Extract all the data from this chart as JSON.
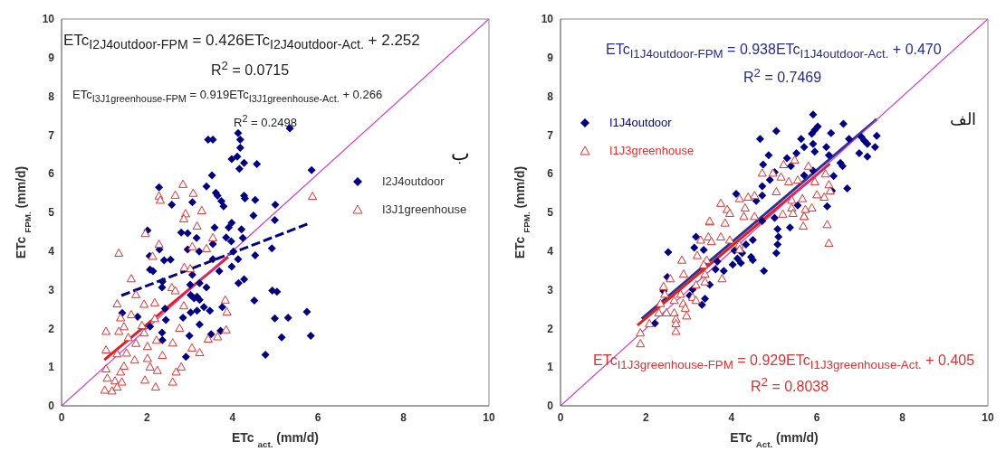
{
  "chart_data": [
    {
      "type": "scatter",
      "xlabel": "ETc $_{act.}$ (mm/d)",
      "ylabel": "ETc $_{FPM.}$ (mm/d)",
      "xlim": [
        0,
        10
      ],
      "xticks": [
        0,
        2,
        4,
        6,
        8,
        10
      ],
      "ylim": [
        0,
        10
      ],
      "yticks": [
        0,
        1,
        2,
        3,
        4,
        5,
        6,
        7,
        8,
        9,
        10
      ],
      "grid": false,
      "legend": "right",
      "annotations": [
        "ETc$_{I2J4outdoor-FPM}$ = 0.426ETc$_{I2J4outdoor-Act.}$ + 2.252",
        "R$^{2}$ = 0.0715",
        "ETc$_{I3J1greenhouse-FPM}$ = 0.919ETc$_{I3J1greenhouse-Act.}$ + 0.266",
        "R$^{2}$ = 0.2498",
        "ب"
      ],
      "series": [
        {
          "name": "I2J4outdoor",
          "marker": "diamond",
          "color": "#000080",
          "x": [
            2.28,
            5.34,
            3.43,
            3.54,
            4.13,
            4.18,
            4.18,
            3.98,
            4.11,
            4.27,
            4.16,
            4.57,
            5.85,
            3.52,
            3.39,
            3.61,
            3.65,
            3.74,
            3.79,
            3.06,
            2.58,
            4.27,
            4.29,
            4.53,
            5.0,
            4.49,
            4.99,
            2.01,
            2.8,
            2.95,
            3.58,
            3.98,
            3.91,
            4.21,
            3.16,
            3.85,
            3.97,
            4.24,
            3.54,
            2.29,
            2.95,
            3.22,
            4.92,
            2.06,
            4.02,
            4.13,
            4.53,
            2.4,
            2.55,
            3.54,
            3.98,
            2.07,
            2.14,
            3.69,
            2.36,
            4.14,
            4.27,
            3.06,
            3.23,
            2.35,
            3.39,
            3.01,
            3.02,
            3.17,
            3.23,
            3.1,
            4.93,
            5.04,
            4.51,
            1.42,
            2.42,
            3.02,
            3.17,
            3.33,
            3.47,
            3.76,
            1.78,
            2.84,
            4.99,
            5.3,
            5.74,
            2.44,
            3.23,
            2.35,
            2.99,
            3.5,
            3.72,
            5.15,
            5.83,
            2.36,
            2.91,
            4.77,
            2.07
          ],
          "values": [
            5.65,
            7.17,
            6.88,
            6.88,
            7.05,
            6.88,
            6.67,
            6.38,
            6.44,
            6.28,
            6.13,
            6.25,
            6.09,
            5.96,
            5.67,
            5.51,
            5.43,
            5.29,
            5.16,
            5.26,
            5.2,
            5.43,
            5.36,
            5.32,
            5.2,
            4.92,
            4.8,
            4.53,
            4.48,
            4.46,
            4.61,
            4.73,
            4.61,
            4.56,
            4.34,
            4.35,
            4.25,
            4.34,
            4.18,
            4.04,
            4.04,
            3.99,
            4.07,
            3.87,
            3.99,
            3.79,
            3.89,
            3.76,
            3.78,
            3.79,
            3.6,
            3.52,
            3.48,
            3.48,
            3.21,
            3.17,
            3.27,
            3.39,
            3.17,
            3.06,
            3.06,
            3.13,
            2.86,
            2.82,
            2.74,
            2.78,
            2.98,
            2.95,
            2.72,
            2.4,
            2.51,
            2.41,
            2.46,
            2.55,
            2.46,
            2.55,
            2.3,
            2.28,
            2.26,
            2.28,
            2.43,
            2.22,
            2.1,
            1.89,
            1.81,
            1.85,
            1.94,
            1.77,
            1.81,
            1.7,
            1.27,
            1.32,
            2.05
          ]
        },
        {
          "name": "I3J1greenhouse",
          "marker": "triangle",
          "color": "#e03030",
          "x": [
            2.28,
            2.31,
            2.84,
            2.66,
            3.08,
            3.28,
            2.9,
            5.87,
            2.86,
            3.17,
            3.54,
            1.96,
            2.13,
            2.28,
            1.34,
            1.63,
            3.39,
            3.06,
            2.87,
            3.01,
            1.74,
            1.3,
            1.93,
            2.18,
            2.58,
            2.66,
            2.86,
            3.83,
            3.87,
            1.63,
            1.38,
            2.18,
            1.46,
            1.88,
            1.04,
            1.34,
            1.93,
            2.22,
            1.74,
            1.56,
            2.76,
            3.85,
            3.43,
            3.65,
            2.01,
            1.04,
            1.3,
            1.52,
            1.71,
            2.36,
            2.6,
            3.05,
            3.23,
            2.01,
            2.07,
            2.24,
            2.68,
            2.8,
            1.04,
            1.46,
            1.38,
            1.07,
            1.25,
            1.41,
            1.95,
            2.6,
            1.01,
            1.18,
            1.3,
            2.2
          ],
          "values": [
            5.43,
            5.32,
            5.73,
            5.45,
            5.5,
            5.05,
            4.97,
            5.42,
            4.84,
            4.65,
            4.35,
            4.46,
            3.87,
            4.18,
            3.95,
            3.29,
            4.07,
            4.12,
            3.58,
            3.55,
            2.88,
            2.64,
            2.63,
            2.67,
            3.06,
            2.98,
            2.59,
            2.74,
            2.43,
            2.36,
            2.28,
            2.26,
            2.05,
            2.08,
            1.93,
            1.93,
            1.89,
            1.7,
            1.62,
            1.77,
            2.01,
            1.97,
            1.73,
            1.79,
            1.54,
            1.45,
            1.35,
            1.37,
            1.19,
            1.31,
            1.63,
            1.5,
            1.38,
            1.23,
            1.01,
            0.92,
            0.88,
            1.01,
            0.96,
            1.03,
            0.88,
            0.72,
            0.65,
            0.62,
            0.67,
            0.62,
            0.41,
            0.39,
            0.49,
            0.49
          ]
        },
        {
          "type": "line",
          "color": "#000080",
          "line_style": "dashed",
          "x": [
            1.4,
            5.8
          ],
          "values": [
            2.85,
            4.72
          ]
        },
        {
          "type": "line",
          "color": "#e02020",
          "line_style": "solid",
          "x": [
            1.0,
            3.9
          ],
          "values": [
            1.19,
            3.85
          ]
        },
        {
          "type": "line",
          "color": "#cc33cc",
          "line_style": "solid",
          "x": [
            0,
            10
          ],
          "values": [
            0,
            10
          ]
        }
      ]
    },
    {
      "type": "scatter",
      "xlabel": "ETc $_{Act.}$ (mm/d)",
      "ylabel": "ETc $_{FPM.}$ (mm/d)",
      "xlim": [
        0,
        10
      ],
      "xticks": [
        0,
        2,
        4,
        6,
        8,
        10
      ],
      "ylim": [
        0,
        10
      ],
      "yticks": [
        0,
        1,
        2,
        3,
        4,
        5,
        6,
        7,
        8,
        9,
        10
      ],
      "grid": false,
      "legend": "top left",
      "annotations": [
        "ETc$_{I1J4outdoor-FPM}$ = 0.938ETc$_{I1J4outdoor-Act.}$ + 0.470",
        "R$^{2}$ = 0.7469",
        "الف",
        "ETc$_{I1J3greenhouse-FPM}$ = 0.929ETc$_{I1J3greenhouse-Act.}$ + 0.405",
        "R$^{2}$ = 0.8038"
      ],
      "series": [
        {
          "name": "I1J4outdoor",
          "marker": "diamond",
          "color": "#000080",
          "x": [
            4.67,
            5.05,
            5.91,
            6.62,
            6.02,
            5.95,
            5.88,
            5.63,
            6.33,
            6.75,
            7.04,
            7.11,
            7.18,
            7.4,
            7.36,
            5.91,
            5.95,
            5.7,
            5.52,
            6.22,
            6.28,
            6.99,
            7.18,
            4.87,
            4.74,
            5.3,
            5.39,
            6.55,
            6.6,
            6.39,
            5.01,
            4.9,
            4.72,
            4.72,
            5.7,
            5.91,
            6.71,
            6.35,
            4.11,
            4.58,
            5.55,
            6.24,
            5.01,
            5.37,
            4.72,
            5.08,
            5.1,
            5.08,
            5.05,
            4.76,
            4.5,
            4.34,
            4.25,
            4.14,
            4.46,
            4.5,
            4.22,
            4.03,
            4.07,
            3.67,
            3.63,
            3.82,
            3.17,
            3.13,
            3.35,
            2.52,
            2.5,
            2.41,
            3.49,
            3.02,
            3.38,
            3.31,
            2.21,
            3.09
          ],
          "values": [
            6.9,
            7.1,
            7.53,
            7.29,
            7.22,
            7.13,
            7.03,
            6.9,
            7.05,
            6.9,
            6.95,
            6.85,
            6.77,
            6.98,
            6.69,
            6.77,
            6.57,
            6.69,
            6.53,
            6.69,
            6.48,
            6.53,
            6.44,
            6.48,
            6.24,
            6.4,
            6.2,
            6.28,
            6.2,
            5.94,
            6.04,
            5.84,
            5.68,
            5.44,
            5.96,
            6.08,
            5.62,
            5.56,
            5.48,
            5.3,
            5.18,
            5.16,
            4.86,
            4.61,
            4.78,
            4.57,
            4.37,
            4.17,
            3.95,
            3.49,
            4.29,
            4.17,
            3.95,
            3.81,
            3.85,
            3.77,
            3.69,
            3.65,
            4.01,
            3.73,
            3.53,
            3.49,
            4.37,
            4.09,
            4.03,
            3.97,
            3.33,
            2.97,
            3.13,
            2.85,
            2.77,
            2.61,
            2.13,
            3.01
          ]
        },
        {
          "name": "I1J3greenhouse",
          "marker": "triangle",
          "color": "#e03030",
          "x": [
            3.75,
            3.9,
            4.19,
            4.39,
            4.54,
            4.32,
            4.72,
            4.97,
            5.22,
            5.48,
            5.8,
            5.16,
            5.05,
            5.34,
            5.55,
            5.95,
            6.2,
            6.28,
            6.31,
            6.0,
            6.17,
            5.41,
            5.66,
            5.41,
            5.73,
            5.88,
            5.2,
            5.7,
            3.49,
            6.24,
            6.28,
            5.68,
            5.7,
            5.44,
            4.54,
            4.29,
            3.96,
            3.49,
            3.85,
            3.75,
            3.46,
            3.53,
            3.28,
            3.96,
            4.18,
            4.19,
            3.2,
            3.42,
            2.84,
            3.35,
            2.88,
            2.57,
            3.38,
            3.38,
            3.78,
            3.17,
            3.09,
            2.81,
            2.66,
            2.87,
            2.92,
            2.95,
            3.17,
            2.34,
            2.48,
            2.66,
            2.7,
            2.7,
            2.7,
            2.44,
            2.08,
            1.87,
            1.87,
            2.3,
            2.41
          ],
          "values": [
            5.24,
            5.08,
            5.36,
            5.4,
            5.44,
            5.12,
            6.02,
            6.02,
            6.24,
            6.36,
            6.2,
            5.92,
            5.54,
            5.8,
            5.84,
            5.8,
            6.0,
            5.72,
            5.56,
            5.46,
            5.4,
            5.32,
            5.36,
            5.12,
            5.08,
            5.12,
            4.96,
            4.9,
            4.76,
            4.69,
            4.21,
            4.65,
            4.9,
            4.98,
            4.9,
            4.9,
            4.98,
            4.78,
            4.73,
            4.37,
            4.37,
            4.25,
            4.29,
            4.29,
            4.17,
            4.05,
            3.89,
            3.77,
            3.77,
            3.65,
            3.41,
            3.29,
            3.41,
            3.21,
            3.29,
            3.13,
            2.81,
            2.89,
            2.73,
            2.65,
            2.53,
            2.33,
            2.73,
            2.65,
            2.41,
            2.41,
            2.25,
            2.13,
            1.93,
            2.89,
            2.13,
            1.89,
            1.61,
            2.41,
            3.09
          ]
        },
        {
          "type": "line",
          "color": "#303090",
          "line_style": "solid",
          "x": [
            1.9,
            7.4
          ],
          "values": [
            2.25,
            7.41
          ]
        },
        {
          "type": "line",
          "color": "#e02020",
          "line_style": "solid",
          "x": [
            1.8,
            6.3
          ],
          "values": [
            2.08,
            6.26
          ]
        },
        {
          "type": "line",
          "color": "#cc33cc",
          "line_style": "solid",
          "x": [
            0,
            10
          ],
          "values": [
            0,
            10
          ]
        }
      ]
    }
  ]
}
